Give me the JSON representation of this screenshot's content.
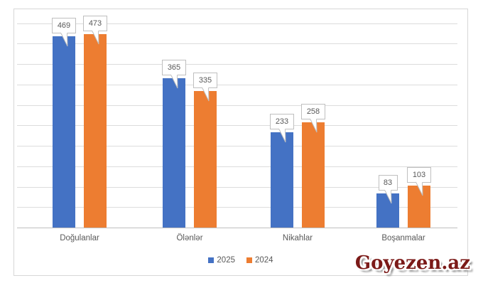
{
  "watermark": {
    "text": "Goyezen.az",
    "color": "#7B1A18"
  },
  "colors": {
    "series_2025": "#4472C4",
    "series_2024": "#ED7D31",
    "gridline": "#DCDCDC",
    "axis_line": "#BFBFBF",
    "label_text": "#595959",
    "callout_border": "#BFBFBF",
    "frame_border": "#D7D7D7"
  },
  "legend": {
    "items": [
      {
        "label": "2025",
        "color": "#4472C4"
      },
      {
        "label": "2024",
        "color": "#ED7D31"
      }
    ]
  },
  "chart_data": {
    "type": "bar",
    "categories": [
      "Doğulanlar",
      "Ölənlər",
      "Nikahlar",
      "Boşanmalar"
    ],
    "series": [
      {
        "name": "2025",
        "color": "#4472C4",
        "values": [
          469,
          365,
          233,
          83
        ]
      },
      {
        "name": "2024",
        "color": "#ED7D31",
        "values": [
          473,
          335,
          258,
          103
        ]
      }
    ],
    "title": "",
    "xlabel": "",
    "ylabel": "",
    "ylim": [
      0,
      500
    ],
    "gridline_step": 50,
    "grid": true,
    "y_tick_labels_visible": false,
    "legend_position": "bottom",
    "data_labels": "callout"
  }
}
